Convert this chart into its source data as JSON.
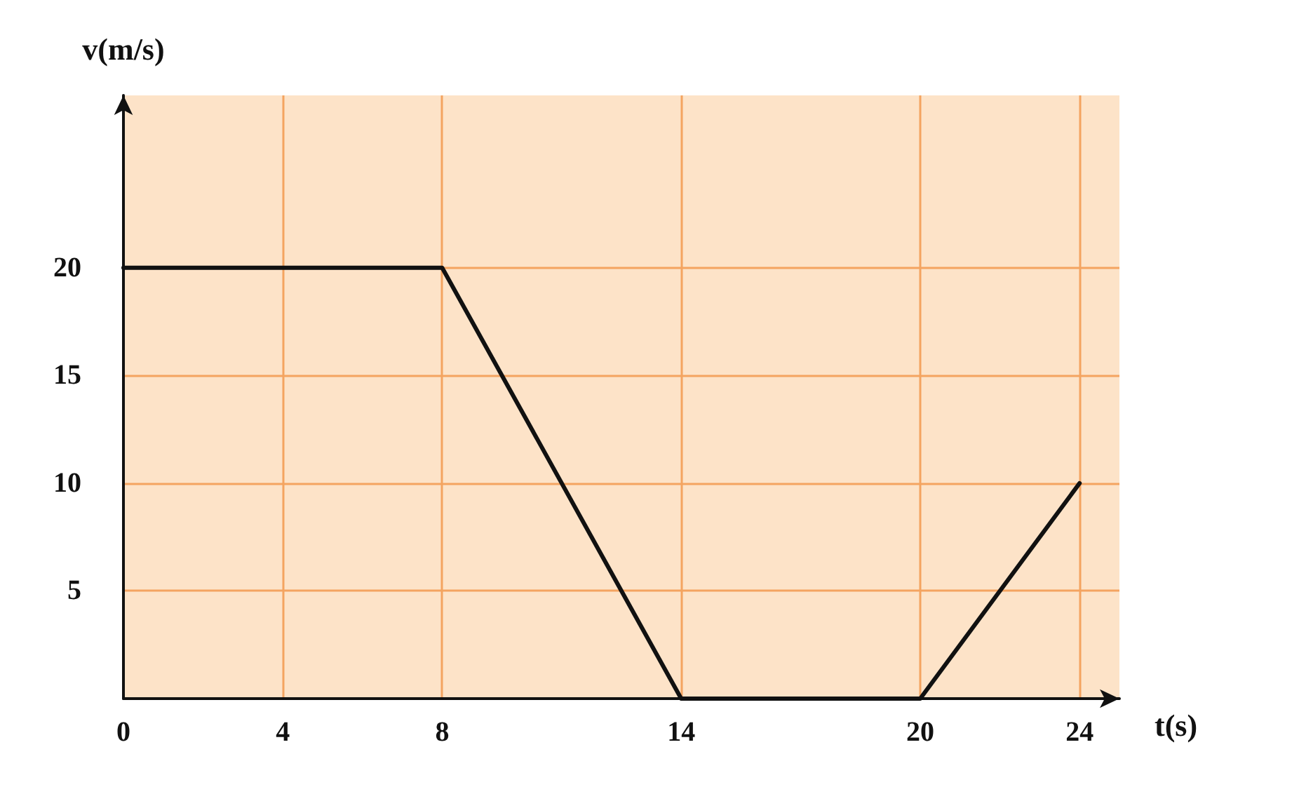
{
  "chart_data": {
    "type": "line",
    "xlabel": "t(s)",
    "ylabel": "v(m/s)",
    "x": [
      0,
      8,
      14,
      20,
      24
    ],
    "series": [
      {
        "color": "#111111",
        "values": [
          20,
          20,
          0,
          0,
          10
        ]
      }
    ],
    "xlim": [
      0,
      25
    ],
    "xticks": [
      0,
      4,
      8,
      14,
      20,
      24
    ],
    "ylim": [
      0,
      28
    ],
    "yticks": [
      5,
      10,
      15,
      20
    ],
    "grid": true,
    "marker": "none",
    "line_style": "solid"
  }
}
